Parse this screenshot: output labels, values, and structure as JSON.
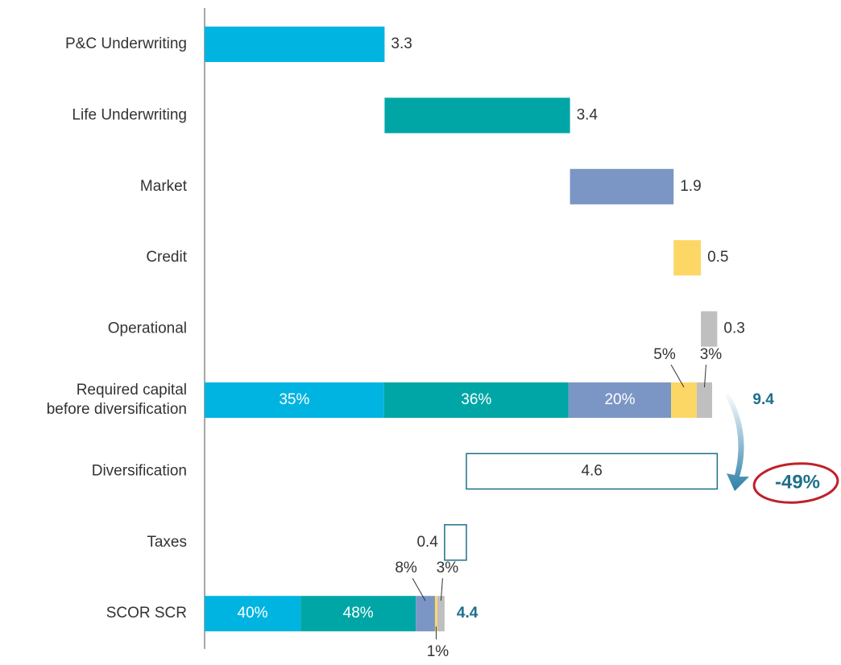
{
  "chart_data": {
    "type": "waterfall",
    "categories": [
      "P&C Underwriting",
      "Life Underwriting",
      "Market",
      "Credit",
      "Operational",
      "Required capital\nbefore diversification",
      "Diversification",
      "Taxes",
      "SCOR SCR"
    ],
    "values": [
      3.3,
      3.4,
      1.9,
      0.5,
      0.3,
      9.4,
      4.6,
      0.4,
      4.4
    ],
    "steps": [
      "up",
      "up",
      "up",
      "up",
      "up",
      "total",
      "down",
      "down",
      "total"
    ],
    "colors": [
      "#00b4e1",
      "#00a6a6",
      "#7b96c4",
      "#fdd766",
      "#bfbfbf"
    ],
    "decrease_outline": "#1f6f8b",
    "total_label_color": "#1f6f8b",
    "breakdowns": [
      {
        "values": [
          35,
          36,
          20,
          5,
          3
        ],
        "value_labels": [
          "35%",
          "36%",
          "20%",
          "5%",
          "3%"
        ]
      },
      {
        "values": [
          40,
          48,
          8,
          1,
          3
        ],
        "value_labels": [
          "40%",
          "48%",
          "8%",
          "1%",
          "3%"
        ]
      }
    ],
    "annotation": "-49%"
  }
}
